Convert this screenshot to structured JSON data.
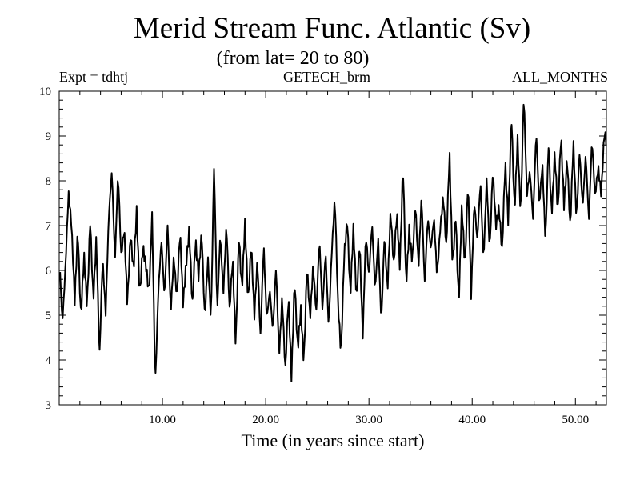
{
  "chart_data": {
    "type": "line",
    "title": "Merid Stream Func. Atlantic (Sv)",
    "subtitle": "(from lat= 20 to 80)",
    "header_left": "Expt = tdhtj",
    "header_center": "GETECH_brm",
    "header_right": "ALL_MONTHS",
    "xlabel": "Time (in years since start)",
    "ylabel": "",
    "xlim": [
      0,
      53
    ],
    "ylim": [
      3,
      10
    ],
    "x_major_ticks": [
      10,
      20,
      30,
      40,
      50
    ],
    "x_tick_labels": [
      "10.00",
      "20.00",
      "30.00",
      "40.00",
      "50.00"
    ],
    "y_major_ticks": [
      3,
      4,
      5,
      6,
      7,
      8,
      9,
      10
    ],
    "y_tick_labels": [
      "3",
      "4",
      "5",
      "6",
      "7",
      "8",
      "9",
      "10"
    ],
    "grid": false,
    "series": [
      {
        "name": "Merid Stream Func. Atlantic",
        "color": "#000000",
        "x_start": 0.0833,
        "x_step": 0.0833,
        "anchors": [
          [
            0.08,
            6.0
          ],
          [
            0.3,
            4.9
          ],
          [
            0.6,
            6.1
          ],
          [
            0.9,
            7.7
          ],
          [
            1.2,
            6.9
          ],
          [
            1.5,
            5.3
          ],
          [
            1.8,
            7.0
          ],
          [
            2.1,
            5.0
          ],
          [
            2.4,
            6.3
          ],
          [
            2.7,
            5.1
          ],
          [
            3.0,
            7.1
          ],
          [
            3.3,
            5.4
          ],
          [
            3.6,
            6.8
          ],
          [
            3.9,
            4.0
          ],
          [
            4.2,
            6.2
          ],
          [
            4.5,
            5.0
          ],
          [
            4.8,
            7.3
          ],
          [
            5.1,
            8.3
          ],
          [
            5.4,
            6.2
          ],
          [
            5.7,
            8.1
          ],
          [
            6.0,
            6.3
          ],
          [
            6.3,
            7.0
          ],
          [
            6.6,
            5.3
          ],
          [
            6.9,
            6.8
          ],
          [
            7.2,
            5.9
          ],
          [
            7.5,
            7.3
          ],
          [
            7.8,
            5.5
          ],
          [
            8.1,
            6.6
          ],
          [
            8.4,
            6.1
          ],
          [
            8.7,
            5.4
          ],
          [
            9.0,
            7.2
          ],
          [
            9.3,
            3.5
          ],
          [
            9.6,
            5.6
          ],
          [
            9.9,
            6.7
          ],
          [
            10.2,
            5.3
          ],
          [
            10.5,
            7.0
          ],
          [
            10.8,
            5.1
          ],
          [
            11.1,
            6.4
          ],
          [
            11.4,
            5.4
          ],
          [
            11.7,
            6.8
          ],
          [
            12.0,
            5.2
          ],
          [
            12.3,
            6.2
          ],
          [
            12.6,
            7.0
          ],
          [
            12.9,
            5.2
          ],
          [
            13.2,
            6.6
          ],
          [
            13.5,
            5.8
          ],
          [
            13.8,
            6.9
          ],
          [
            14.1,
            5.0
          ],
          [
            14.4,
            6.3
          ],
          [
            14.7,
            4.8
          ],
          [
            15.0,
            8.3
          ],
          [
            15.3,
            5.1
          ],
          [
            15.6,
            6.9
          ],
          [
            15.9,
            5.5
          ],
          [
            16.2,
            7.0
          ],
          [
            16.5,
            5.0
          ],
          [
            16.8,
            6.3
          ],
          [
            17.1,
            4.4
          ],
          [
            17.4,
            6.8
          ],
          [
            17.7,
            5.5
          ],
          [
            18.0,
            7.0
          ],
          [
            18.3,
            5.3
          ],
          [
            18.6,
            6.7
          ],
          [
            18.9,
            5.0
          ],
          [
            19.2,
            6.2
          ],
          [
            19.5,
            4.4
          ],
          [
            19.8,
            6.6
          ],
          [
            20.1,
            5.0
          ],
          [
            20.4,
            5.6
          ],
          [
            20.7,
            4.6
          ],
          [
            21.0,
            6.0
          ],
          [
            21.3,
            4.1
          ],
          [
            21.6,
            5.5
          ],
          [
            21.9,
            3.8
          ],
          [
            22.2,
            5.4
          ],
          [
            22.5,
            3.5
          ],
          [
            22.8,
            5.8
          ],
          [
            23.1,
            4.3
          ],
          [
            23.4,
            5.2
          ],
          [
            23.7,
            3.9
          ],
          [
            24.0,
            6.0
          ],
          [
            24.3,
            4.9
          ],
          [
            24.6,
            6.2
          ],
          [
            24.9,
            5.1
          ],
          [
            25.2,
            6.7
          ],
          [
            25.5,
            5.0
          ],
          [
            25.8,
            6.4
          ],
          [
            26.1,
            4.8
          ],
          [
            26.4,
            6.5
          ],
          [
            26.7,
            7.6
          ],
          [
            27.0,
            5.2
          ],
          [
            27.3,
            4.1
          ],
          [
            27.6,
            6.4
          ],
          [
            27.9,
            7.2
          ],
          [
            28.2,
            5.4
          ],
          [
            28.5,
            6.9
          ],
          [
            28.8,
            5.3
          ],
          [
            29.1,
            6.7
          ],
          [
            29.4,
            4.6
          ],
          [
            29.7,
            6.8
          ],
          [
            30.0,
            5.8
          ],
          [
            30.3,
            7.0
          ],
          [
            30.6,
            5.6
          ],
          [
            30.9,
            6.8
          ],
          [
            31.2,
            4.8
          ],
          [
            31.5,
            6.7
          ],
          [
            31.8,
            5.5
          ],
          [
            32.1,
            7.4
          ],
          [
            32.4,
            6.2
          ],
          [
            32.7,
            7.3
          ],
          [
            33.0,
            6.0
          ],
          [
            33.3,
            8.3
          ],
          [
            33.6,
            5.7
          ],
          [
            33.9,
            7.0
          ],
          [
            34.2,
            6.2
          ],
          [
            34.5,
            7.4
          ],
          [
            34.8,
            6.0
          ],
          [
            35.1,
            7.7
          ],
          [
            35.4,
            5.8
          ],
          [
            35.7,
            7.2
          ],
          [
            36.0,
            6.4
          ],
          [
            36.3,
            7.1
          ],
          [
            36.6,
            5.9
          ],
          [
            36.9,
            7.0
          ],
          [
            37.2,
            7.7
          ],
          [
            37.5,
            6.4
          ],
          [
            37.8,
            8.6
          ],
          [
            38.1,
            6.1
          ],
          [
            38.4,
            7.3
          ],
          [
            38.7,
            5.3
          ],
          [
            39.0,
            7.4
          ],
          [
            39.3,
            6.0
          ],
          [
            39.6,
            8.0
          ],
          [
            39.9,
            5.5
          ],
          [
            40.2,
            7.6
          ],
          [
            40.5,
            6.6
          ],
          [
            40.8,
            7.9
          ],
          [
            41.1,
            6.2
          ],
          [
            41.4,
            8.1
          ],
          [
            41.7,
            6.5
          ],
          [
            42.0,
            8.2
          ],
          [
            42.3,
            6.9
          ],
          [
            42.6,
            7.4
          ],
          [
            42.9,
            6.5
          ],
          [
            43.2,
            8.5
          ],
          [
            43.5,
            7.0
          ],
          [
            43.8,
            9.4
          ],
          [
            44.1,
            7.3
          ],
          [
            44.4,
            9.0
          ],
          [
            44.7,
            7.3
          ],
          [
            45.0,
            9.9
          ],
          [
            45.3,
            7.6
          ],
          [
            45.6,
            8.2
          ],
          [
            45.9,
            7.2
          ],
          [
            46.2,
            9.2
          ],
          [
            46.5,
            7.4
          ],
          [
            46.8,
            8.3
          ],
          [
            47.1,
            6.6
          ],
          [
            47.4,
            8.9
          ],
          [
            47.7,
            7.3
          ],
          [
            48.0,
            8.6
          ],
          [
            48.3,
            7.2
          ],
          [
            48.6,
            9.0
          ],
          [
            48.9,
            7.5
          ],
          [
            49.2,
            8.6
          ],
          [
            49.5,
            6.9
          ],
          [
            49.8,
            8.8
          ],
          [
            50.1,
            7.1
          ],
          [
            50.4,
            8.7
          ],
          [
            50.7,
            7.5
          ],
          [
            51.0,
            8.6
          ],
          [
            51.3,
            7.0
          ],
          [
            51.6,
            8.9
          ],
          [
            51.9,
            7.7
          ],
          [
            52.2,
            8.4
          ],
          [
            52.5,
            7.7
          ],
          [
            52.8,
            9.0
          ],
          [
            52.99,
            8.8
          ]
        ]
      }
    ]
  }
}
